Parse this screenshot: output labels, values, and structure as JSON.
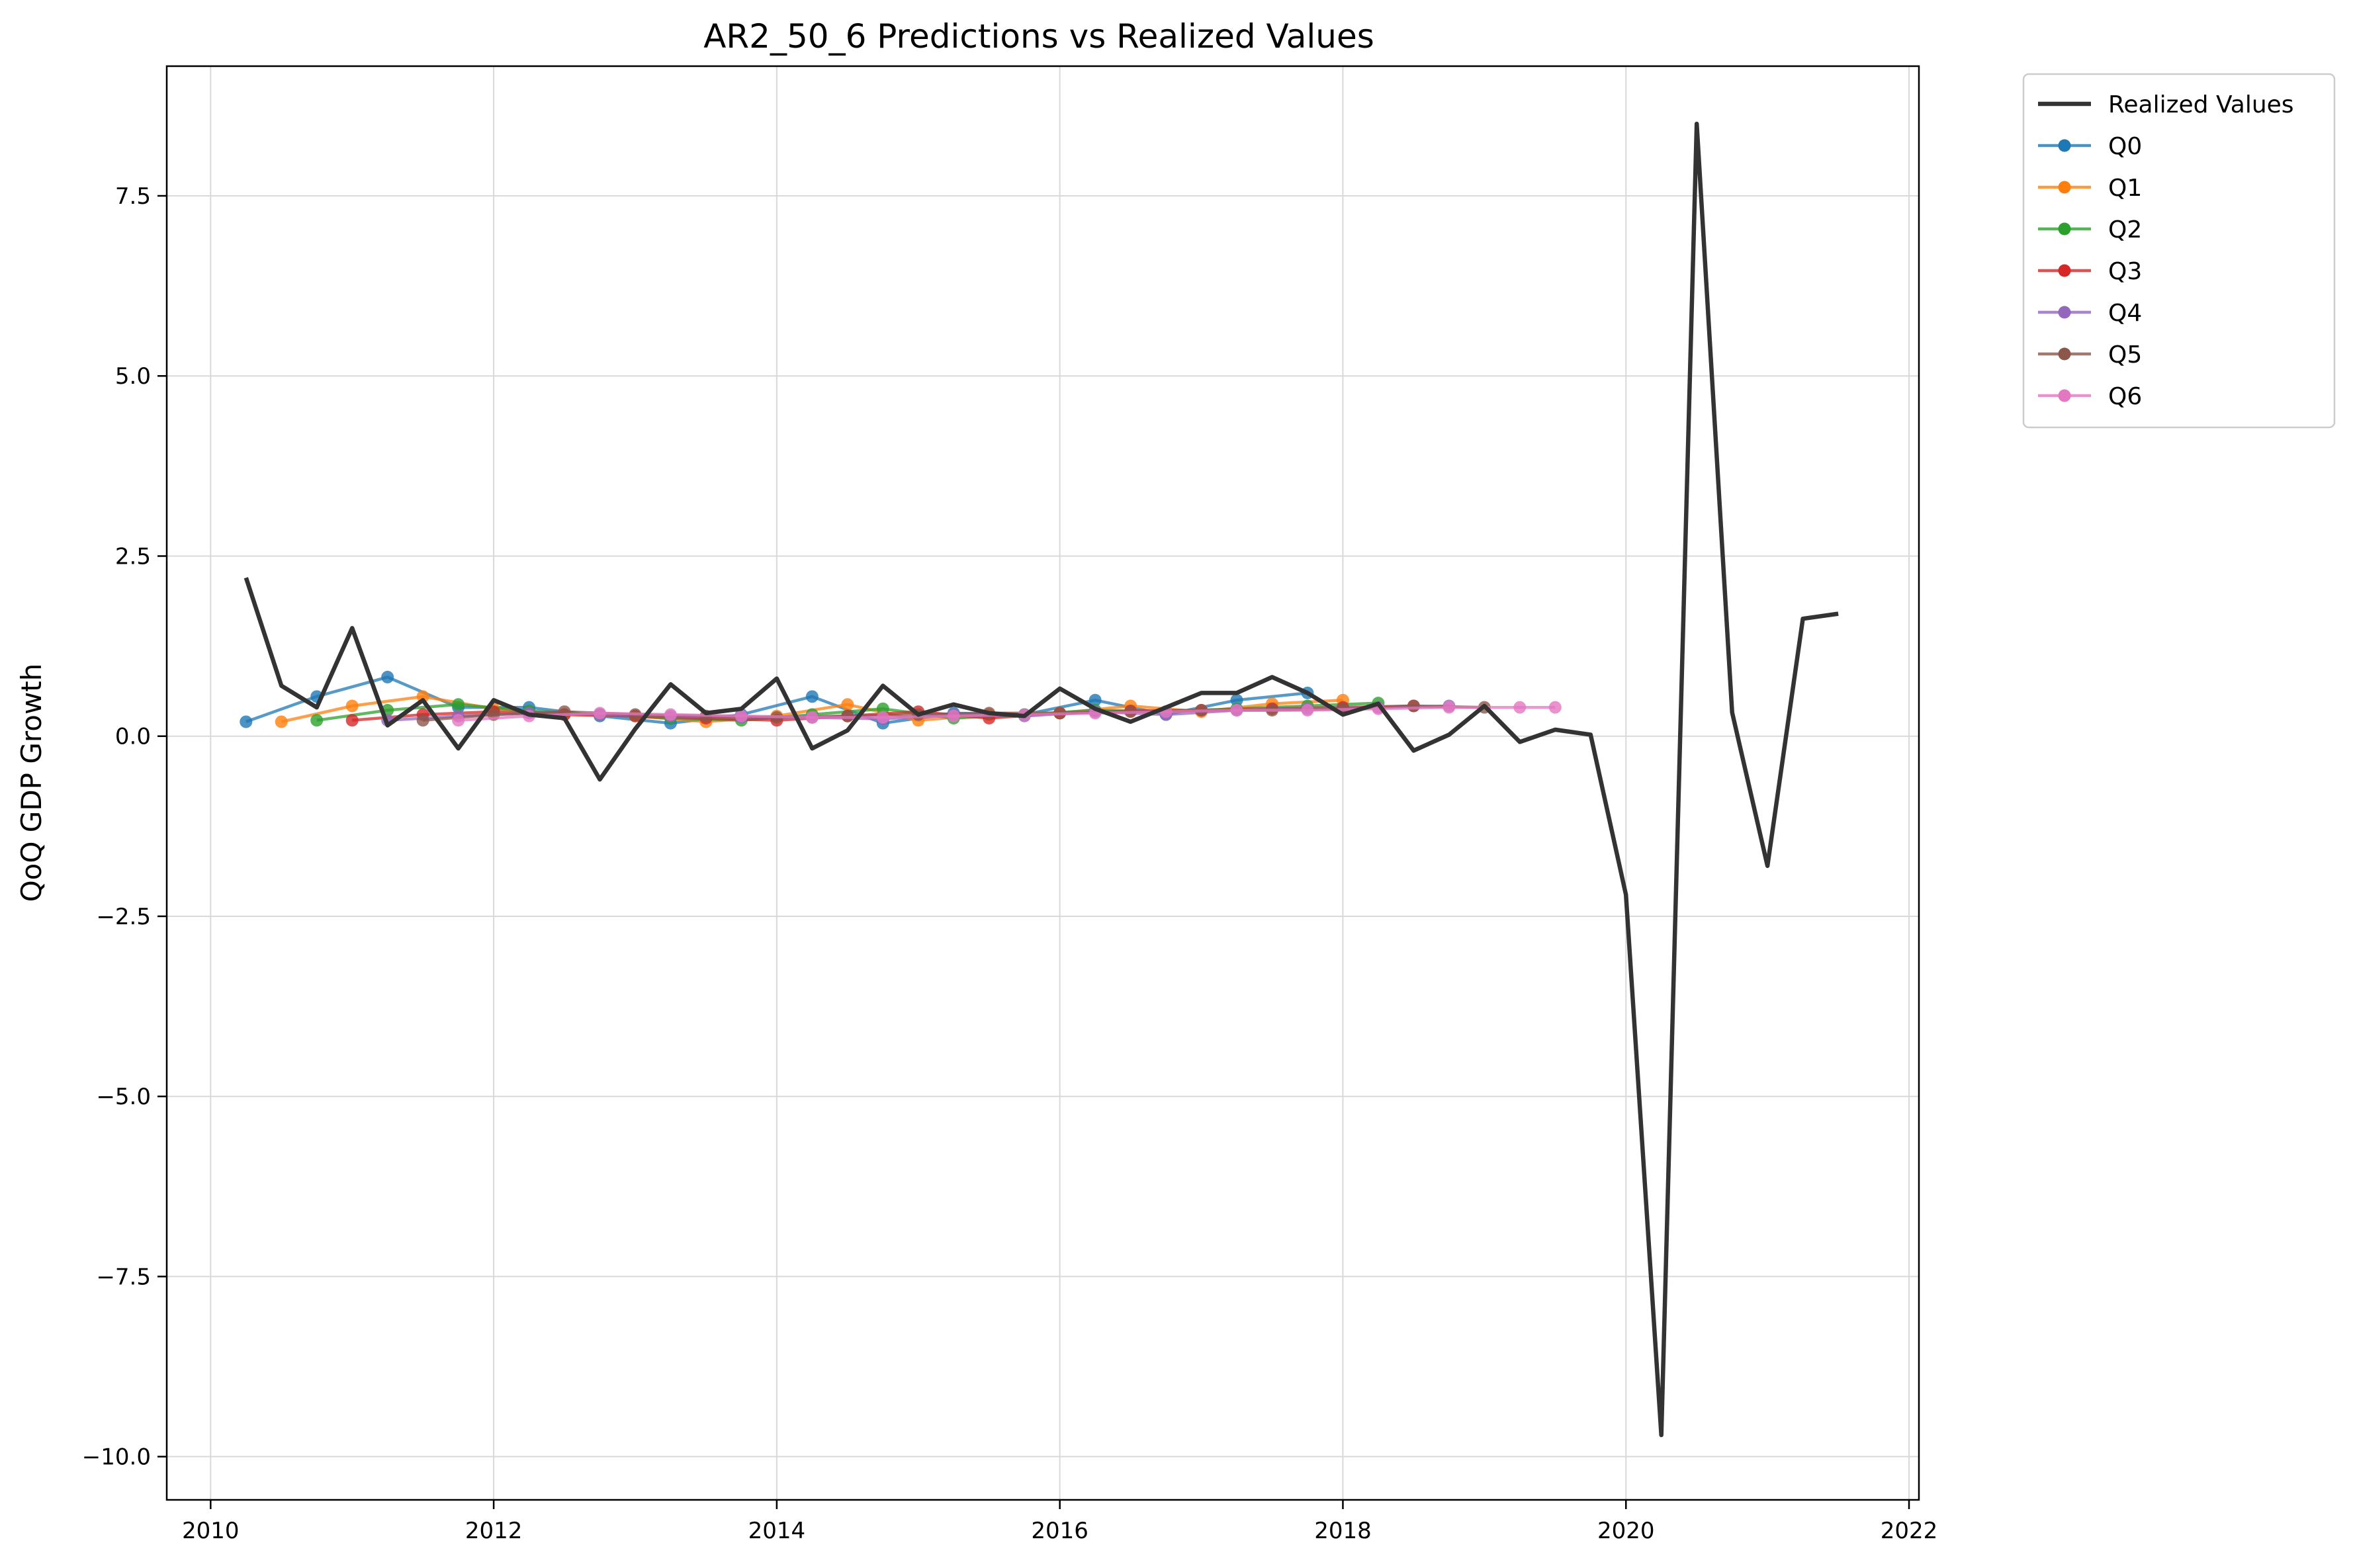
{
  "chart_data": {
    "type": "line",
    "title": "AR2_50_6 Predictions vs Realized Values",
    "xlabel": "",
    "ylabel": "QoQ GDP Growth",
    "xlim": [
      2009.69,
      2022.07
    ],
    "ylim": [
      -10.6,
      9.3
    ],
    "xticks": [
      2010,
      2012,
      2014,
      2016,
      2018,
      2020,
      2022
    ],
    "xtick_labels": [
      "2010",
      "2012",
      "2014",
      "2016",
      "2018",
      "2020",
      "2022"
    ],
    "yticks": [
      7.5,
      5.0,
      2.5,
      0.0,
      -2.5,
      -5.0,
      -7.5,
      -10.0
    ],
    "ytick_labels": [
      "7.5",
      "5.0",
      "2.5",
      "0.0",
      "−2.5",
      "−5.0",
      "−7.5",
      "−10.0"
    ],
    "grid": true,
    "legend_position": "outside-top-right",
    "series": [
      {
        "name": "Realized Values",
        "color": "#333333",
        "markers": false,
        "x": [
          2010.25,
          2010.5,
          2010.75,
          2011.0,
          2011.25,
          2011.5,
          2011.75,
          2012.0,
          2012.25,
          2012.5,
          2012.75,
          2013.0,
          2013.25,
          2013.5,
          2013.75,
          2014.0,
          2014.25,
          2014.5,
          2014.75,
          2015.0,
          2015.25,
          2015.5,
          2015.75,
          2016.0,
          2016.25,
          2016.5,
          2016.75,
          2017.0,
          2017.25,
          2017.5,
          2017.75,
          2018.0,
          2018.25,
          2018.5,
          2018.75,
          2019.0,
          2019.25,
          2019.5,
          2019.75,
          2020.0,
          2020.25,
          2020.5,
          2020.75,
          2021.0,
          2021.25,
          2021.5
        ],
        "y": [
          2.2,
          0.7,
          0.4,
          1.5,
          0.15,
          0.5,
          -0.17,
          0.5,
          0.3,
          0.25,
          -0.6,
          0.1,
          0.72,
          0.32,
          0.38,
          0.8,
          -0.17,
          0.08,
          0.7,
          0.3,
          0.44,
          0.32,
          0.28,
          0.66,
          0.38,
          0.2,
          0.4,
          0.6,
          0.6,
          0.82,
          0.6,
          0.3,
          0.45,
          -0.2,
          0.02,
          0.42,
          -0.08,
          0.09,
          0.02,
          -2.2,
          -9.7,
          8.5,
          0.33,
          -1.8,
          1.63,
          1.7
        ]
      },
      {
        "name": "Q0",
        "color": "#1f77b4",
        "markers": true,
        "x": [
          2010.25,
          2010.75,
          2011.25,
          2011.75,
          2012.25,
          2012.75,
          2013.25,
          2013.75,
          2014.25,
          2014.75,
          2015.25,
          2015.75,
          2016.25,
          2016.75,
          2017.25,
          2017.75
        ],
        "y": [
          0.2,
          0.55,
          0.82,
          0.4,
          0.4,
          0.28,
          0.18,
          0.3,
          0.55,
          0.18,
          0.32,
          0.3,
          0.5,
          0.3,
          0.5,
          0.6
        ]
      },
      {
        "name": "Q1",
        "color": "#ff7f0e",
        "markers": true,
        "x": [
          2010.5,
          2011.0,
          2011.5,
          2012.0,
          2012.5,
          2013.0,
          2013.5,
          2014.0,
          2014.5,
          2015.0,
          2015.5,
          2016.0,
          2016.5,
          2017.0,
          2017.5,
          2018.0
        ],
        "y": [
          0.2,
          0.42,
          0.55,
          0.38,
          0.3,
          0.28,
          0.2,
          0.28,
          0.44,
          0.22,
          0.3,
          0.32,
          0.42,
          0.34,
          0.45,
          0.5
        ]
      },
      {
        "name": "Q2",
        "color": "#2ca02c",
        "markers": true,
        "x": [
          2010.75,
          2011.25,
          2011.75,
          2012.25,
          2012.75,
          2013.25,
          2013.75,
          2014.25,
          2014.75,
          2015.25,
          2015.75,
          2016.25,
          2016.75,
          2017.25,
          2017.75,
          2018.25
        ],
        "y": [
          0.22,
          0.36,
          0.44,
          0.35,
          0.3,
          0.25,
          0.22,
          0.3,
          0.38,
          0.25,
          0.3,
          0.36,
          0.34,
          0.38,
          0.42,
          0.46
        ]
      },
      {
        "name": "Q3",
        "color": "#d62728",
        "markers": true,
        "x": [
          2011.0,
          2011.5,
          2012.0,
          2012.5,
          2013.0,
          2013.5,
          2014.0,
          2014.5,
          2015.0,
          2015.5,
          2016.0,
          2016.5,
          2017.0,
          2017.5,
          2018.0,
          2018.5
        ],
        "y": [
          0.22,
          0.3,
          0.34,
          0.3,
          0.28,
          0.25,
          0.22,
          0.28,
          0.34,
          0.25,
          0.32,
          0.35,
          0.36,
          0.38,
          0.4,
          0.42
        ]
      },
      {
        "name": "Q4",
        "color": "#9467bd",
        "markers": true,
        "x": [
          2011.25,
          2011.75,
          2012.25,
          2012.75,
          2013.25,
          2013.75,
          2014.25,
          2014.75,
          2015.25,
          2015.75,
          2016.25,
          2016.75,
          2017.25,
          2017.75,
          2018.25,
          2018.75
        ],
        "y": [
          0.22,
          0.28,
          0.32,
          0.3,
          0.28,
          0.26,
          0.26,
          0.24,
          0.3,
          0.28,
          0.34,
          0.3,
          0.36,
          0.38,
          0.4,
          0.42
        ]
      },
      {
        "name": "Q5",
        "color": "#8c564b",
        "markers": true,
        "x": [
          2011.5,
          2012.0,
          2012.5,
          2013.0,
          2013.5,
          2014.0,
          2014.5,
          2015.0,
          2015.5,
          2016.0,
          2016.5,
          2017.0,
          2017.5,
          2018.0,
          2018.5,
          2019.0
        ],
        "y": [
          0.22,
          0.3,
          0.34,
          0.3,
          0.28,
          0.26,
          0.28,
          0.3,
          0.32,
          0.32,
          0.34,
          0.36,
          0.36,
          0.38,
          0.42,
          0.4
        ]
      },
      {
        "name": "Q6",
        "color": "#e377c2",
        "markers": true,
        "x": [
          2011.75,
          2012.25,
          2012.75,
          2013.25,
          2013.75,
          2014.25,
          2014.75,
          2015.25,
          2015.75,
          2016.25,
          2016.75,
          2017.25,
          2017.75,
          2018.25,
          2018.75,
          2019.25,
          2019.5
        ],
        "y": [
          0.22,
          0.28,
          0.32,
          0.3,
          0.28,
          0.26,
          0.26,
          0.28,
          0.3,
          0.32,
          0.34,
          0.36,
          0.36,
          0.38,
          0.4,
          0.4,
          0.4
        ]
      }
    ]
  }
}
